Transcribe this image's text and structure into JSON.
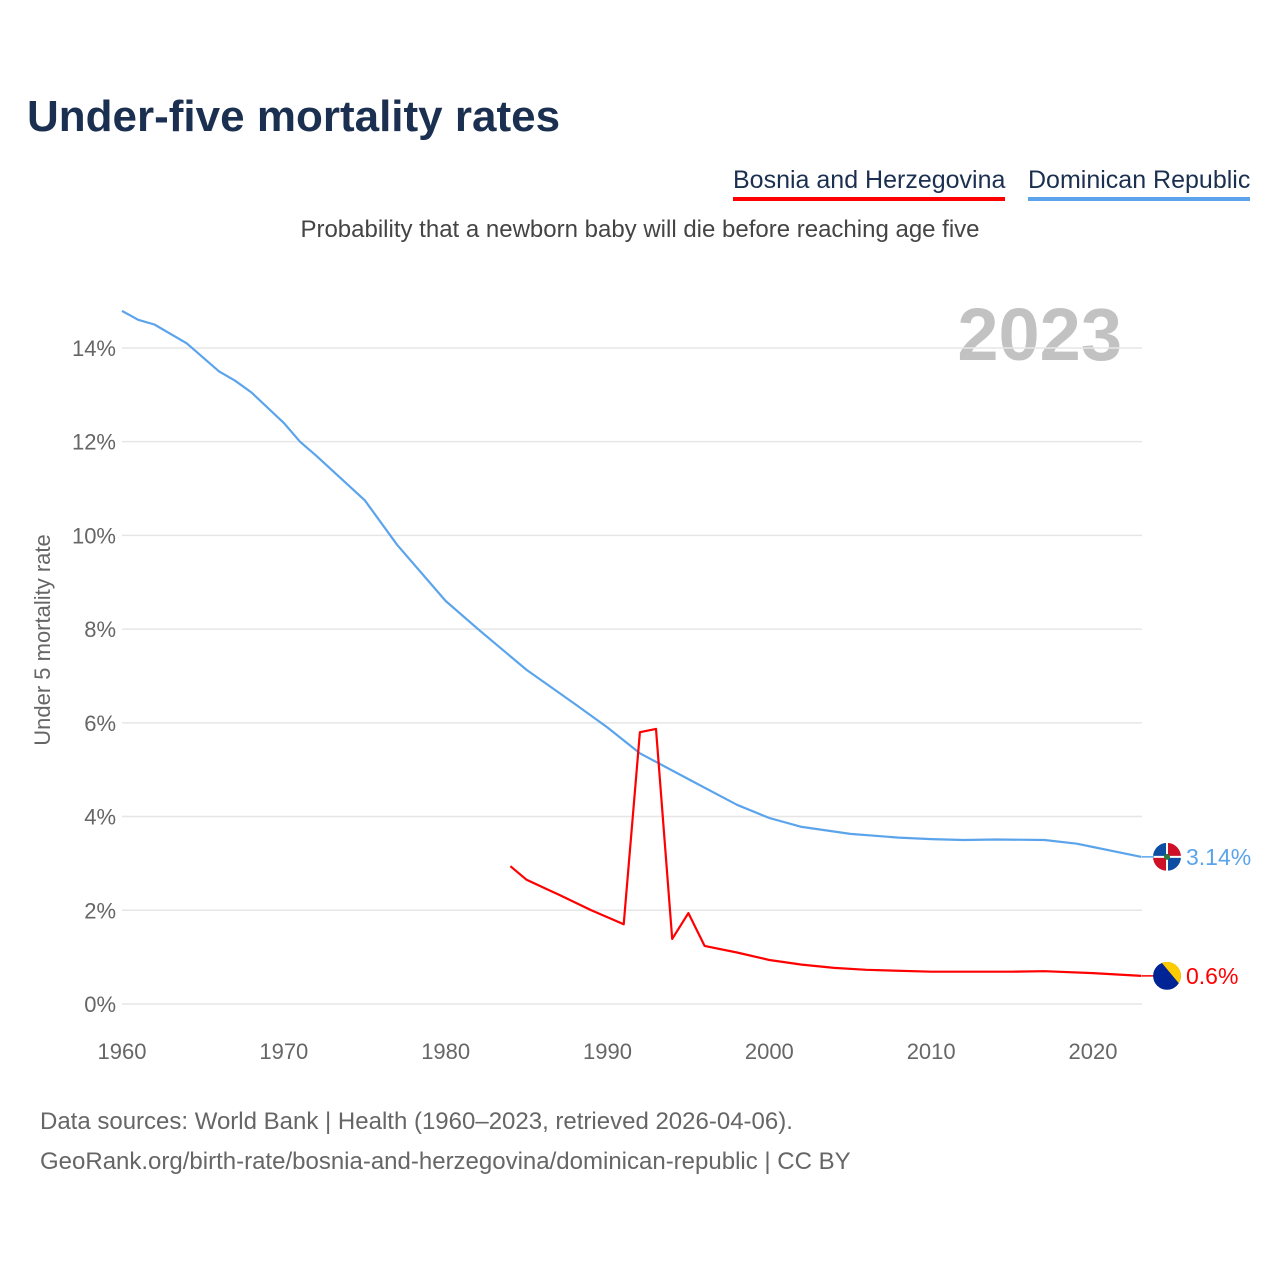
{
  "title": "Under-five mortality rates",
  "subtitle": "Probability that a newborn baby will die before reaching age five",
  "legend": [
    {
      "label": "Bosnia and Herzegovina",
      "color": "#ff0000"
    },
    {
      "label": "Dominican Republic",
      "color": "#5ba4ec"
    }
  ],
  "year_label": "2023",
  "footer": {
    "line1": "Data sources: World Bank | Health (1960–2023, retrieved 2026-04-06).",
    "line2": "GeoRank.org/birth-rate/bosnia-and-herzegovina/dominican-republic | CC BY"
  },
  "chart_data": {
    "type": "line",
    "title": "Under-five mortality rates",
    "xlabel": "",
    "ylabel": "Under 5 mortality rate",
    "xlim": [
      1960,
      2023
    ],
    "ylim": [
      0,
      15
    ],
    "x_ticks": [
      1960,
      1970,
      1980,
      1990,
      2000,
      2010,
      2020
    ],
    "y_ticks": [
      {
        "v": 0,
        "label": "0%"
      },
      {
        "v": 2,
        "label": "2%"
      },
      {
        "v": 4,
        "label": "4%"
      },
      {
        "v": 6,
        "label": "6%"
      },
      {
        "v": 8,
        "label": "8%"
      },
      {
        "v": 10,
        "label": "10%"
      },
      {
        "v": 12,
        "label": "12%"
      },
      {
        "v": 14,
        "label": "14%"
      }
    ],
    "series": [
      {
        "name": "Dominican Republic",
        "color": "#5ba4ec",
        "end_label": "3.14%",
        "flag": "dominican-republic-flag",
        "points": [
          [
            1960,
            14.79
          ],
          [
            1961,
            14.6
          ],
          [
            1962,
            14.5
          ],
          [
            1964,
            14.1
          ],
          [
            1966,
            13.5
          ],
          [
            1967,
            13.3
          ],
          [
            1968,
            13.05
          ],
          [
            1970,
            12.4
          ],
          [
            1971,
            12.0
          ],
          [
            1972,
            11.7
          ],
          [
            1975,
            10.75
          ],
          [
            1977,
            9.8
          ],
          [
            1980,
            8.6
          ],
          [
            1982,
            8.0
          ],
          [
            1985,
            7.13
          ],
          [
            1988,
            6.4
          ],
          [
            1990,
            5.9
          ],
          [
            1992,
            5.35
          ],
          [
            1995,
            4.8
          ],
          [
            1998,
            4.25
          ],
          [
            2000,
            3.97
          ],
          [
            2002,
            3.78
          ],
          [
            2005,
            3.63
          ],
          [
            2008,
            3.55
          ],
          [
            2010,
            3.52
          ],
          [
            2012,
            3.5
          ],
          [
            2014,
            3.51
          ],
          [
            2017,
            3.5
          ],
          [
            2019,
            3.42
          ],
          [
            2020,
            3.35
          ],
          [
            2021,
            3.28
          ],
          [
            2023,
            3.14
          ]
        ]
      },
      {
        "name": "Bosnia and Herzegovina",
        "color": "#ff0000",
        "end_label": "0.6%",
        "flag": "bosnia-flag",
        "points": [
          [
            1984,
            2.94
          ],
          [
            1985,
            2.65
          ],
          [
            1987,
            2.33
          ],
          [
            1989,
            2.0
          ],
          [
            1991,
            1.7
          ],
          [
            1992,
            5.8
          ],
          [
            1993,
            5.87
          ],
          [
            1994,
            1.39
          ],
          [
            1995,
            1.94
          ],
          [
            1996,
            1.24
          ],
          [
            1998,
            1.1
          ],
          [
            2000,
            0.94
          ],
          [
            2002,
            0.84
          ],
          [
            2004,
            0.77
          ],
          [
            2006,
            0.73
          ],
          [
            2010,
            0.69
          ],
          [
            2015,
            0.69
          ],
          [
            2017,
            0.7
          ],
          [
            2020,
            0.66
          ],
          [
            2023,
            0.6
          ]
        ]
      }
    ]
  }
}
